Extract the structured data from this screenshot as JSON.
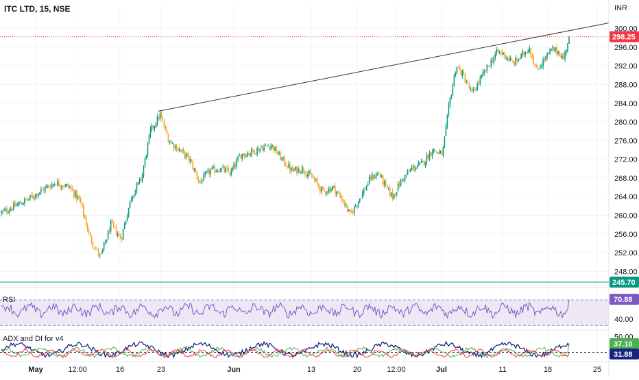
{
  "header": {
    "title": "ITC LTD, 15, NSE",
    "currency": "INR"
  },
  "colors": {
    "up": "#089981",
    "down": "#f7a21b",
    "trendline": "#333333",
    "last_price": "#f23645",
    "support": "#089981",
    "rsi": "#7e57c2",
    "rsi_band": "#ede7f6",
    "adx": "#1a237e",
    "plus_di": "#4caf50",
    "minus_di": "#f23645"
  },
  "chart_data": [
    {
      "type": "candlestick",
      "pane": "price",
      "title": "ITC LTD, 15, NSE",
      "ylim": [
        246,
        302
      ],
      "y_ticks": [
        "300.00",
        "296.00",
        "292.00",
        "288.00",
        "284.00",
        "280.00",
        "276.00",
        "272.00",
        "268.00",
        "264.00",
        "260.00",
        "256.00",
        "252.00",
        "248.00"
      ],
      "x_ticks": [
        "May",
        "12:00",
        "16",
        "23",
        "Jun",
        "13",
        "20",
        "12:00",
        "Jul",
        "11",
        "18",
        "25"
      ],
      "trendline": {
        "from": {
          "x": "23",
          "y": 282.3
        },
        "to": {
          "x": "25",
          "y": 301.2
        }
      },
      "last_price": {
        "value": 298.25,
        "label": "298.25"
      },
      "horizontal_line": {
        "value": 245.7,
        "label": "245.70"
      },
      "close_path": [
        {
          "bar": 0,
          "close": 260.5
        },
        {
          "bar": 20,
          "close": 262.0
        },
        {
          "bar": 40,
          "close": 263.5
        },
        {
          "bar": 60,
          "close": 265.5
        },
        {
          "bar": 80,
          "close": 267.0
        },
        {
          "bar": 100,
          "close": 266.0
        },
        {
          "bar": 115,
          "close": 263.0
        },
        {
          "bar": 130,
          "close": 255.0
        },
        {
          "bar": 145,
          "close": 251.0
        },
        {
          "bar": 160,
          "close": 258.0
        },
        {
          "bar": 175,
          "close": 255.0
        },
        {
          "bar": 190,
          "close": 264.0
        },
        {
          "bar": 205,
          "close": 268.0
        },
        {
          "bar": 218,
          "close": 278.0
        },
        {
          "bar": 232,
          "close": 281.5
        },
        {
          "bar": 245,
          "close": 276.0
        },
        {
          "bar": 260,
          "close": 274.0
        },
        {
          "bar": 275,
          "close": 272.0
        },
        {
          "bar": 290,
          "close": 267.0
        },
        {
          "bar": 305,
          "close": 269.5
        },
        {
          "bar": 320,
          "close": 270.0
        },
        {
          "bar": 335,
          "close": 269.0
        },
        {
          "bar": 350,
          "close": 273.0
        },
        {
          "bar": 365,
          "close": 273.5
        },
        {
          "bar": 380,
          "close": 274.5
        },
        {
          "bar": 395,
          "close": 275.0
        },
        {
          "bar": 410,
          "close": 272.0
        },
        {
          "bar": 425,
          "close": 269.5
        },
        {
          "bar": 440,
          "close": 270.0
        },
        {
          "bar": 455,
          "close": 268.0
        },
        {
          "bar": 470,
          "close": 265.0
        },
        {
          "bar": 485,
          "close": 266.0
        },
        {
          "bar": 500,
          "close": 263.0
        },
        {
          "bar": 510,
          "close": 260.0
        },
        {
          "bar": 525,
          "close": 264.0
        },
        {
          "bar": 540,
          "close": 268.0
        },
        {
          "bar": 552,
          "close": 269.0
        },
        {
          "bar": 562,
          "close": 266.0
        },
        {
          "bar": 572,
          "close": 264.0
        },
        {
          "bar": 585,
          "close": 267.5
        },
        {
          "bar": 600,
          "close": 270.0
        },
        {
          "bar": 615,
          "close": 271.0
        },
        {
          "bar": 630,
          "close": 274.0
        },
        {
          "bar": 645,
          "close": 273.0
        },
        {
          "bar": 655,
          "close": 284.0
        },
        {
          "bar": 665,
          "close": 292.0
        },
        {
          "bar": 675,
          "close": 290.0
        },
        {
          "bar": 688,
          "close": 286.0
        },
        {
          "bar": 700,
          "close": 289.0
        },
        {
          "bar": 712,
          "close": 292.0
        },
        {
          "bar": 725,
          "close": 295.0
        },
        {
          "bar": 735,
          "close": 294.5
        },
        {
          "bar": 748,
          "close": 292.5
        },
        {
          "bar": 760,
          "close": 294.0
        },
        {
          "bar": 772,
          "close": 296.0
        },
        {
          "bar": 782,
          "close": 291.0
        },
        {
          "bar": 792,
          "close": 293.0
        },
        {
          "bar": 805,
          "close": 295.5
        },
        {
          "bar": 815,
          "close": 295.0
        },
        {
          "bar": 822,
          "close": 293.5
        },
        {
          "bar": 830,
          "close": 298.25
        }
      ]
    },
    {
      "type": "line",
      "pane": "rsi",
      "title": "RSI",
      "ylim": [
        25,
        85
      ],
      "band": [
        30,
        70
      ],
      "y_ticks": [
        "40.00"
      ],
      "last_value": {
        "value": 70.88,
        "label": "70.88"
      },
      "series": [
        {
          "name": "RSI",
          "mean": 54,
          "amplitude": 14
        }
      ]
    },
    {
      "type": "line",
      "pane": "adx",
      "title": "ADX and DI for v4",
      "ylim": [
        5,
        60
      ],
      "reference_level": 20,
      "y_ticks": [
        "50.00"
      ],
      "last_values": [
        {
          "value": 37.1,
          "label": "37.10",
          "series": "+DI"
        },
        {
          "value": 31.88,
          "label": "31.88",
          "series": "ADX"
        }
      ],
      "series": [
        {
          "name": "ADX",
          "mean": 25,
          "amplitude": 18
        },
        {
          "name": "+DI",
          "mean": 20,
          "amplitude": 12
        },
        {
          "name": "-DI",
          "mean": 18,
          "amplitude": 10
        }
      ]
    }
  ]
}
